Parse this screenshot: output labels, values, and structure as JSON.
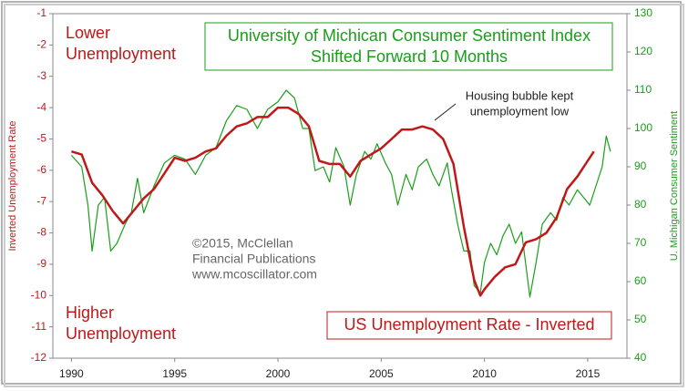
{
  "chart_data": {
    "type": "line",
    "title": "University of Michican Consumer Sentiment Index",
    "subtitle": "Shifted Forward 10 Months",
    "ylabel": "Inverted Unemployment Rate",
    "y2label": "U. Michigan Consumer Sentiment",
    "xlim": [
      1989.1,
      2016.9
    ],
    "xticks": [
      1990,
      1995,
      2000,
      2005,
      2010,
      2015
    ],
    "ylim": [
      -12,
      -1
    ],
    "yticks": [
      -1,
      -2,
      -3,
      -4,
      -5,
      -6,
      -7,
      -8,
      -9,
      -10,
      -11,
      -12
    ],
    "y2lim": [
      40,
      130
    ],
    "y2ticks": [
      40,
      50,
      60,
      70,
      80,
      90,
      100,
      110,
      120,
      130
    ],
    "annotations": [
      {
        "lines": [
          "Lower",
          "Unemployment"
        ]
      },
      {
        "lines": [
          "Higher",
          "Unemployment"
        ]
      },
      {
        "lines": [
          "Housing bubble kept",
          "unemployment low"
        ]
      },
      {
        "lines": [
          "©2015, McClellan",
          "Financial Publications",
          "www.mcoscillator.com"
        ]
      }
    ],
    "series": [
      {
        "name": "University of Michican Consumer Sentiment Index",
        "color": "#1a9e1a",
        "axis": "y2",
        "x": [
          1990.0,
          1990.5,
          1990.8,
          1991.0,
          1991.3,
          1991.6,
          1991.9,
          1992.2,
          1992.6,
          1992.9,
          1993.2,
          1993.5,
          1994.0,
          1994.5,
          1995.0,
          1995.5,
          1996.0,
          1996.5,
          1997.0,
          1997.5,
          1998.0,
          1998.5,
          1999.0,
          1999.5,
          2000.0,
          2000.4,
          2000.8,
          2001.2,
          2001.5,
          2001.8,
          2002.2,
          2002.5,
          2002.8,
          2003.2,
          2003.5,
          2003.8,
          2004.2,
          2004.5,
          2004.8,
          2005.2,
          2005.5,
          2005.8,
          2006.2,
          2006.5,
          2006.8,
          2007.2,
          2007.5,
          2007.8,
          2008.2,
          2008.4,
          2008.7,
          2009.0,
          2009.3,
          2009.5,
          2009.8,
          2010.0,
          2010.3,
          2010.6,
          2010.9,
          2011.2,
          2011.5,
          2011.8,
          2012.2,
          2012.5,
          2012.8,
          2013.2,
          2013.5,
          2013.8,
          2014.1,
          2014.5,
          2014.8,
          2015.1,
          2015.4,
          2015.7,
          2015.9,
          2016.1
        ],
        "values": [
          93,
          90,
          80,
          68,
          80,
          82,
          68,
          70,
          75,
          78,
          87,
          78,
          85,
          91,
          93,
          92,
          88,
          93,
          95,
          102,
          106,
          105,
          100,
          105,
          107,
          110,
          108,
          100,
          100,
          89,
          90,
          86,
          95,
          90,
          80,
          88,
          94,
          92,
          96,
          91,
          88,
          80,
          88,
          84,
          90,
          92,
          88,
          85,
          91,
          84,
          75,
          68,
          68,
          59,
          57,
          65,
          70,
          67,
          72,
          75,
          70,
          73,
          56,
          65,
          75,
          78,
          76,
          82,
          80,
          84,
          82,
          80,
          85,
          90,
          98,
          94
        ]
      },
      {
        "name": "US Unemployment Rate - Inverted",
        "color": "#c01818",
        "x": [
          1990.0,
          1990.5,
          1991.0,
          1991.5,
          1992.0,
          1992.5,
          1993.0,
          1993.5,
          1994.0,
          1994.5,
          1995.0,
          1995.5,
          1996.0,
          1996.5,
          1997.0,
          1997.5,
          1998.0,
          1998.5,
          1999.0,
          1999.5,
          2000.0,
          2000.5,
          2001.0,
          2001.5,
          2002.0,
          2002.5,
          2003.0,
          2003.5,
          2004.0,
          2004.5,
          2005.0,
          2005.5,
          2006.0,
          2006.5,
          2007.0,
          2007.5,
          2008.0,
          2008.5,
          2009.0,
          2009.5,
          2009.8,
          2010.0,
          2010.5,
          2011.0,
          2011.5,
          2012.0,
          2012.5,
          2013.0,
          2013.5,
          2014.0,
          2014.5,
          2015.0,
          2015.3
        ],
        "values": [
          -5.4,
          -5.5,
          -6.4,
          -6.8,
          -7.3,
          -7.7,
          -7.3,
          -6.9,
          -6.6,
          -6.1,
          -5.6,
          -5.7,
          -5.6,
          -5.4,
          -5.3,
          -4.9,
          -4.6,
          -4.5,
          -4.3,
          -4.3,
          -4.0,
          -4.0,
          -4.2,
          -4.6,
          -5.7,
          -5.8,
          -5.8,
          -6.2,
          -5.7,
          -5.5,
          -5.3,
          -5.0,
          -4.7,
          -4.7,
          -4.6,
          -4.7,
          -5.0,
          -5.8,
          -7.8,
          -9.5,
          -10.0,
          -9.8,
          -9.4,
          -9.1,
          -9.0,
          -8.3,
          -8.2,
          -8.0,
          -7.5,
          -6.6,
          -6.2,
          -5.7,
          -5.4
        ]
      }
    ]
  }
}
